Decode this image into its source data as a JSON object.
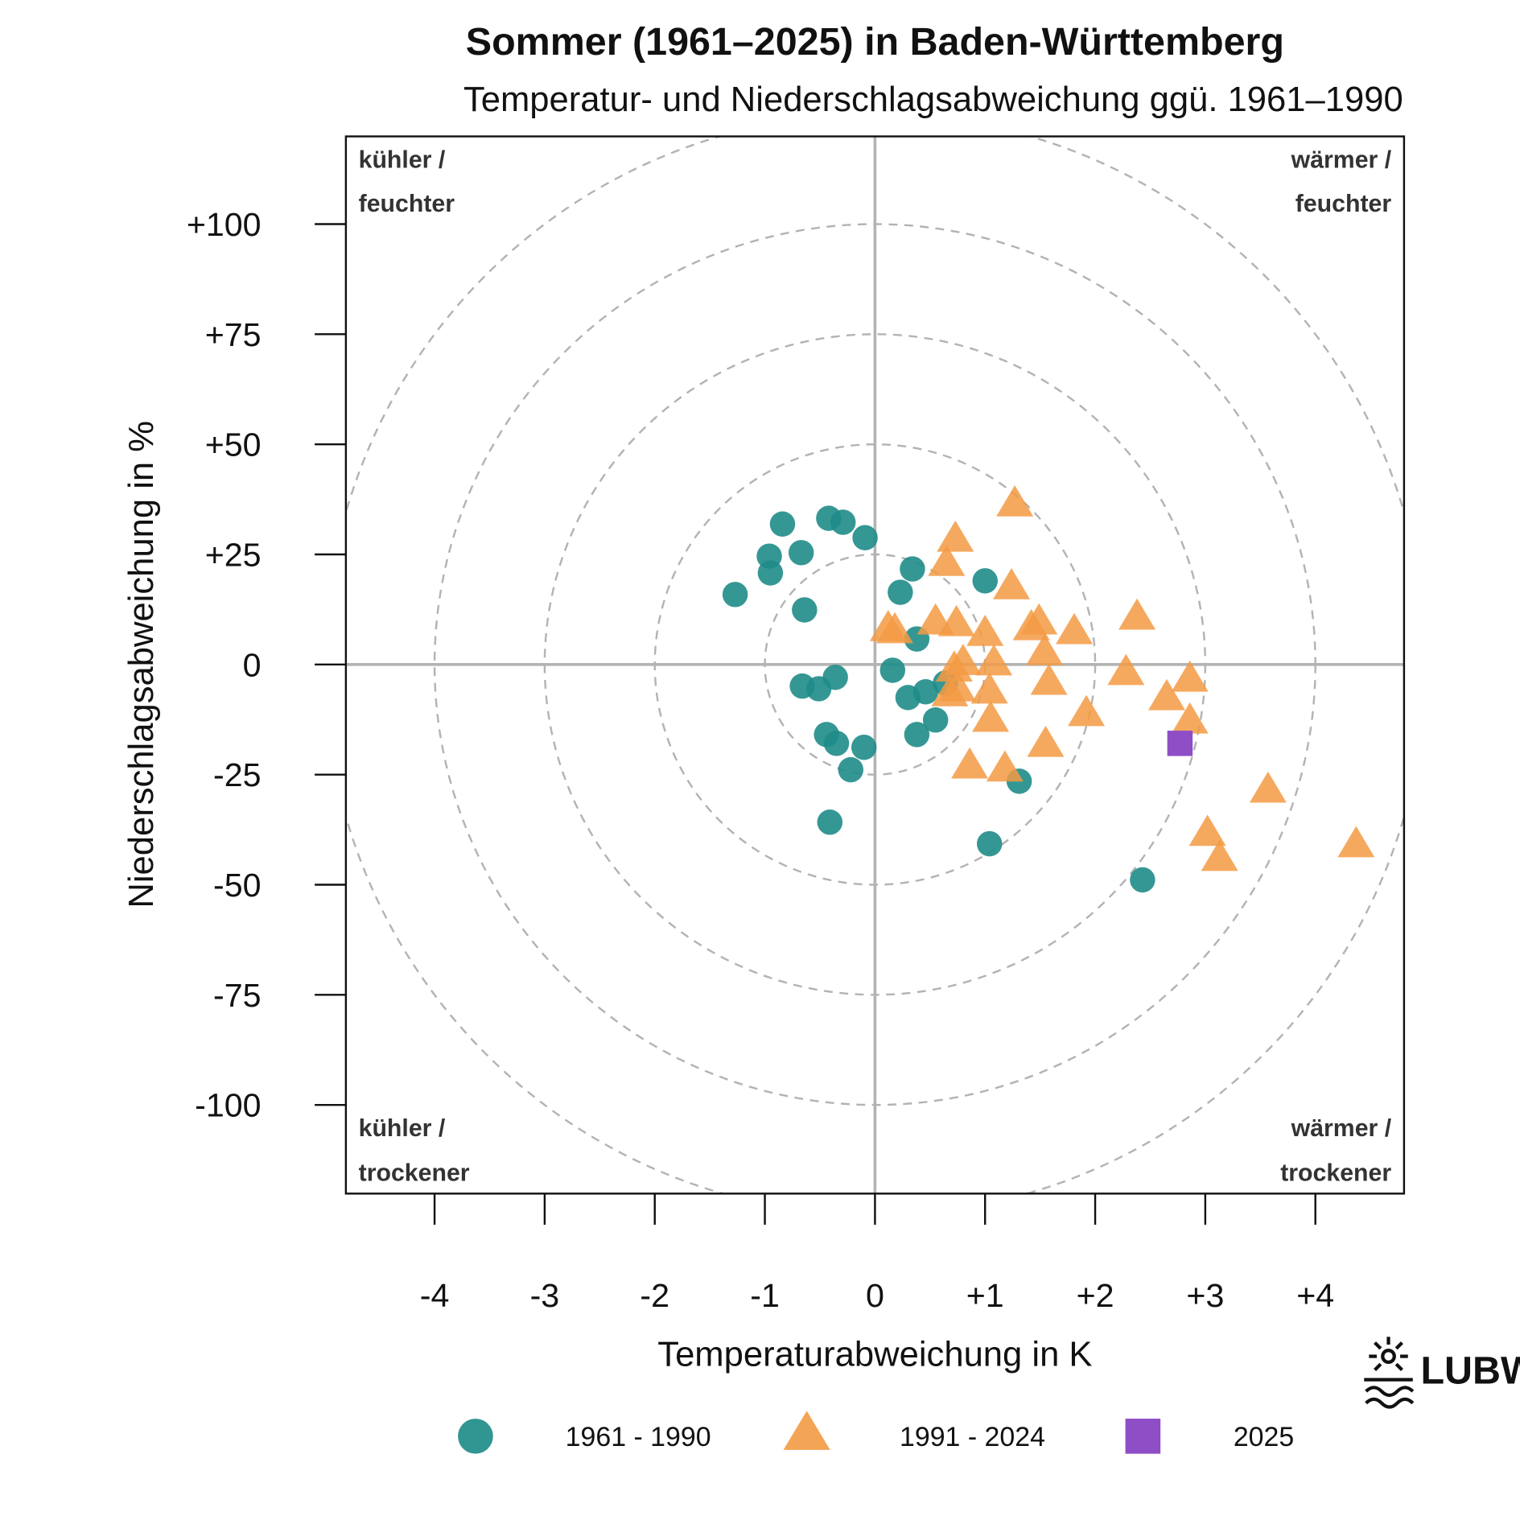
{
  "chart_data": {
    "type": "scatter",
    "title": "Sommer (1961–2025) in Baden-Württemberg",
    "subtitle": "Temperatur- und Niederschlagsabweichung ggü. 1961–1990",
    "xlabel": "Temperaturabweichung in K",
    "ylabel": "Niederschlagsabweichung in %",
    "xlim": [
      -4.8,
      4.8
    ],
    "ylim": [
      -120,
      120
    ],
    "xticks": [
      -4,
      -3,
      -2,
      -1,
      0,
      1,
      2,
      3,
      4
    ],
    "xtick_labels": [
      "-4",
      "-3",
      "-2",
      "-1",
      "0",
      "+1",
      "+2",
      "+3",
      "+4"
    ],
    "yticks": [
      100,
      75,
      50,
      25,
      0,
      -25,
      -50,
      -75,
      -100
    ],
    "ytick_labels": [
      "+100",
      "+75",
      "+50",
      "+25",
      "0",
      "-25",
      "-50",
      "-75",
      "-100"
    ],
    "grid": "dashed concentric circles",
    "circle_radii_K": [
      1,
      2,
      3,
      4,
      5
    ],
    "legend_position": "bottom",
    "quadrant_labels": {
      "top_left": [
        "kühler /",
        "feuchter"
      ],
      "top_right": [
        "wärmer /",
        "feuchter"
      ],
      "bottom_left": [
        "kühler /",
        "trockener"
      ],
      "bottom_right": [
        "wärmer /",
        "trockener"
      ]
    },
    "series": [
      {
        "name": "1961 - 1990",
        "marker": "circle",
        "color": "#1f8c88",
        "points": [
          [
            -1.27,
            15.9
          ],
          [
            -0.84,
            31.9
          ],
          [
            -0.96,
            24.6
          ],
          [
            -0.95,
            20.8
          ],
          [
            -0.67,
            25.4
          ],
          [
            -0.42,
            33.2
          ],
          [
            -0.29,
            32.3
          ],
          [
            -0.09,
            28.8
          ],
          [
            -0.64,
            12.4
          ],
          [
            0.34,
            21.7
          ],
          [
            0.23,
            16.4
          ],
          [
            1.0,
            19.0
          ],
          [
            0.38,
            5.8
          ],
          [
            0.16,
            -1.3
          ],
          [
            -0.66,
            -4.9
          ],
          [
            -0.51,
            -5.5
          ],
          [
            -0.36,
            -2.9
          ],
          [
            0.3,
            -7.5
          ],
          [
            0.46,
            -6.2
          ],
          [
            0.64,
            -4.2
          ],
          [
            0.55,
            -12.6
          ],
          [
            0.38,
            -15.9
          ],
          [
            -0.44,
            -15.9
          ],
          [
            -0.35,
            -17.9
          ],
          [
            -0.1,
            -18.8
          ],
          [
            -0.22,
            -23.9
          ],
          [
            1.31,
            -26.5
          ],
          [
            -0.41,
            -35.8
          ],
          [
            1.04,
            -40.7
          ],
          [
            2.43,
            -48.9
          ]
        ]
      },
      {
        "name": "1991 - 2024",
        "marker": "triangle",
        "color": "#f39a43",
        "points": [
          [
            1.27,
            36.5
          ],
          [
            0.73,
            28.5
          ],
          [
            0.65,
            23.0
          ],
          [
            1.24,
            17.7
          ],
          [
            2.38,
            10.8
          ],
          [
            0.12,
            8.2
          ],
          [
            0.18,
            7.7
          ],
          [
            0.55,
            9.7
          ],
          [
            0.74,
            9.3
          ],
          [
            1.0,
            7.1
          ],
          [
            1.49,
            9.7
          ],
          [
            1.42,
            8.4
          ],
          [
            1.81,
            7.5
          ],
          [
            1.54,
            2.7
          ],
          [
            0.8,
            0.5
          ],
          [
            0.72,
            -1.0
          ],
          [
            0.75,
            -5.5
          ],
          [
            0.68,
            -6.6
          ],
          [
            1.08,
            0.4
          ],
          [
            2.28,
            -1.8
          ],
          [
            2.86,
            -3.3
          ],
          [
            1.58,
            -4.0
          ],
          [
            1.04,
            -6.0
          ],
          [
            2.65,
            -7.5
          ],
          [
            1.05,
            -12.4
          ],
          [
            1.92,
            -11.1
          ],
          [
            2.86,
            -12.8
          ],
          [
            1.55,
            -18.1
          ],
          [
            0.86,
            -23.0
          ],
          [
            1.18,
            -23.7
          ],
          [
            3.57,
            -28.5
          ],
          [
            3.02,
            -38.3
          ],
          [
            4.37,
            -40.9
          ],
          [
            3.13,
            -44.0
          ]
        ]
      },
      {
        "name": "2025",
        "marker": "square",
        "color": "#8e4ec6",
        "points": [
          [
            2.77,
            -17.9
          ]
        ]
      }
    ]
  },
  "logo": {
    "text": "LUBW"
  }
}
